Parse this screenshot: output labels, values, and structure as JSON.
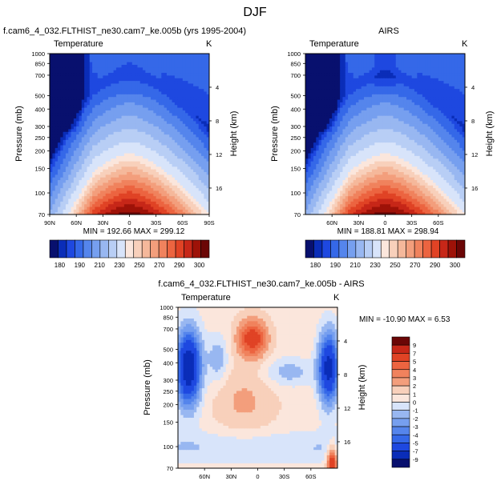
{
  "page_title": "DJF",
  "colors": {
    "cool": [
      "#08106e",
      "#0a2db8",
      "#1e48e0",
      "#3568e8",
      "#5585ec",
      "#769fef",
      "#98b7f1",
      "#b8cef5",
      "#d8e4fa"
    ],
    "warm": [
      "#fbe6dc",
      "#f8d0bb",
      "#f5b89b",
      "#f39e7c",
      "#f0825d",
      "#ec6440",
      "#e04325",
      "#c72718",
      "#9e1208",
      "#6b0606"
    ],
    "frame": "#000000",
    "missing": "#ffffff"
  },
  "chart_data": [
    {
      "id": "model",
      "type": "heatmap",
      "title": "f.cam6_4_032.FLTHIST_ne30.cam7_ke.005b (yrs 1995-2004)",
      "variable": "Temperature",
      "units": "K",
      "ylabel": "Pressure (mb)",
      "ylabel_right": "Height (km)",
      "x_categories": [
        "90N",
        "60N",
        "30N",
        "0",
        "30S",
        "60S",
        "90S"
      ],
      "y_pressure_ticks": [
        "70",
        "100",
        "150",
        "200",
        "250",
        "300",
        "400",
        "500",
        "700",
        "850",
        "1000"
      ],
      "y_height_ticks": [
        "16",
        "12",
        "8",
        "4"
      ],
      "stats": "MIN = 192.66  MAX = 299.12",
      "min": 192.66,
      "max": 299.12,
      "colorbar_labels": [
        "180",
        "190",
        "210",
        "230",
        "250",
        "270",
        "290",
        "300"
      ],
      "ylim_mb": [
        1000,
        70
      ],
      "xlim_deg": [
        90,
        -90
      ]
    },
    {
      "id": "obs",
      "type": "heatmap",
      "title": "AIRS",
      "variable": "Temperature",
      "units": "K",
      "ylabel": "Pressure (mb)",
      "ylabel_right": "Height (km)",
      "x_categories": [
        "60N",
        "30N",
        "0",
        "30S",
        "60S"
      ],
      "y_pressure_ticks": [
        "70",
        "100",
        "150",
        "200",
        "250",
        "300",
        "400",
        "500",
        "700",
        "850",
        "1000"
      ],
      "y_height_ticks": [
        "16",
        "12",
        "8",
        "4"
      ],
      "stats": "MIN = 188.81  MAX = 298.94",
      "min": 188.81,
      "max": 298.94,
      "colorbar_labels": [
        "180",
        "190",
        "210",
        "230",
        "250",
        "270",
        "290",
        "300"
      ],
      "ylim_mb": [
        1000,
        70
      ],
      "xlim_deg": [
        90,
        -90
      ]
    },
    {
      "id": "diff",
      "type": "heatmap",
      "title": "f.cam6_4_032.FLTHIST_ne30.cam7_ke.005b - AIRS",
      "variable": "Temperature",
      "units": "K",
      "ylabel": "Pressure (mb)",
      "ylabel_right": "Height (km)",
      "x_categories": [
        "60N",
        "30N",
        "0",
        "30S",
        "60S"
      ],
      "y_pressure_ticks": [
        "70",
        "100",
        "150",
        "200",
        "250",
        "300",
        "400",
        "500",
        "700",
        "850",
        "1000"
      ],
      "y_height_ticks": [
        "16",
        "12",
        "8",
        "4"
      ],
      "stats": "MIN = -10.90  MAX =   6.53",
      "min": -10.9,
      "max": 6.53,
      "colorbar_labels": [
        "9",
        "7",
        "5",
        "4",
        "3",
        "2",
        "1",
        "0",
        "-1",
        "-2",
        "-3",
        "-4",
        "-5",
        "-7",
        "-9"
      ],
      "ylim_mb": [
        1000,
        70
      ],
      "xlim_deg": [
        90,
        -90
      ]
    }
  ]
}
